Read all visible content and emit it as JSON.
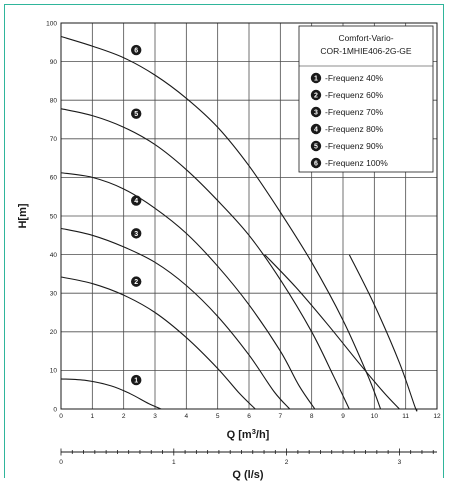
{
  "chart_data": {
    "type": "line",
    "xlabel_base": "Q [m",
    "xlabel_sup": "3",
    "xlabel_tail": "/h]",
    "ylabel": "H[m]",
    "xlim": [
      0,
      12
    ],
    "ylim": [
      0,
      100
    ],
    "x_ticks": [
      "0",
      "1",
      "2",
      "3",
      "4",
      "5",
      "6",
      "7",
      "8",
      "9",
      "10",
      "11",
      "12"
    ],
    "y_ticks": [
      "0",
      "10",
      "20",
      "30",
      "40",
      "50",
      "60",
      "70",
      "80",
      "90",
      "100"
    ],
    "secondary_axis": {
      "label": "Q (l/s)",
      "ticks": [
        {
          "value": 0,
          "label": "0"
        },
        {
          "value": 1,
          "label": "1"
        },
        {
          "value": 2,
          "label": "2"
        },
        {
          "value": 3,
          "label": "3"
        }
      ]
    },
    "legend": {
      "title_line1": "Comfort-Vario-",
      "title_line2": "COR-1MHIE406-2G-GE",
      "entries": [
        {
          "badge": "1",
          "text": "-Frequenz 40%"
        },
        {
          "badge": "2",
          "text": "-Frequenz 60%"
        },
        {
          "badge": "3",
          "text": "-Frequenz 70%"
        },
        {
          "badge": "4",
          "text": "-Frequenz 80%"
        },
        {
          "badge": "5",
          "text": "-Frequenz 90%"
        },
        {
          "badge": "6",
          "text": "-Frequenz 100%"
        }
      ]
    },
    "series": [
      {
        "badge": "1",
        "label_at": [
          2.4,
          7.5
        ],
        "points": [
          [
            0,
            7.8
          ],
          [
            0.8,
            7.4
          ],
          [
            1.6,
            6.0
          ],
          [
            2.2,
            4.0
          ],
          [
            2.8,
            1.4
          ],
          [
            3.2,
            0
          ]
        ]
      },
      {
        "badge": "2",
        "label_at": [
          2.4,
          33
        ],
        "points": [
          [
            0,
            34.2
          ],
          [
            1,
            32.5
          ],
          [
            2,
            29.5
          ],
          [
            3,
            25
          ],
          [
            4,
            18.5
          ],
          [
            5,
            10.5
          ],
          [
            5.7,
            4
          ],
          [
            6.2,
            0
          ]
        ]
      },
      {
        "badge": "3",
        "label_at": [
          2.4,
          45.5
        ],
        "points": [
          [
            0,
            46.8
          ],
          [
            1,
            45
          ],
          [
            2,
            42
          ],
          [
            3,
            38
          ],
          [
            4,
            32
          ],
          [
            5,
            24
          ],
          [
            6,
            14
          ],
          [
            6.8,
            4.5
          ],
          [
            7.3,
            0
          ]
        ]
      },
      {
        "badge": "4",
        "label_at": [
          2.4,
          54
        ],
        "points": [
          [
            0,
            61.2
          ],
          [
            1,
            60
          ],
          [
            2,
            57
          ],
          [
            3,
            52
          ],
          [
            4,
            45.5
          ],
          [
            5,
            37
          ],
          [
            6,
            27
          ],
          [
            7,
            15
          ],
          [
            7.6,
            6
          ],
          [
            8.1,
            0
          ]
        ]
      },
      {
        "badge": "5",
        "label_at": [
          2.4,
          76.5
        ],
        "points": [
          [
            0,
            77.8
          ],
          [
            1,
            76
          ],
          [
            2,
            73
          ],
          [
            3,
            68.5
          ],
          [
            4,
            62
          ],
          [
            5,
            54
          ],
          [
            6,
            45
          ],
          [
            7,
            33.5
          ],
          [
            8,
            20
          ],
          [
            8.7,
            8.5
          ],
          [
            9.2,
            0
          ]
        ]
      },
      {
        "badge": "6",
        "label_at": [
          2.4,
          93
        ],
        "points": [
          [
            0,
            96.5
          ],
          [
            1,
            94
          ],
          [
            2,
            91
          ],
          [
            3,
            86.5
          ],
          [
            4,
            80.5
          ],
          [
            5,
            73
          ],
          [
            6,
            63
          ],
          [
            7,
            51
          ],
          [
            8,
            38
          ],
          [
            9,
            23
          ],
          [
            9.8,
            8.5
          ],
          [
            10.2,
            0
          ]
        ]
      }
    ],
    "extra_series": [
      {
        "badge": "",
        "points": [
          [
            6.5,
            40
          ],
          [
            7.5,
            31.5
          ],
          [
            8.5,
            22
          ],
          [
            9.5,
            12
          ],
          [
            10.3,
            4.3
          ],
          [
            10.8,
            0
          ]
        ]
      },
      {
        "badge": "",
        "points": [
          [
            9.2,
            40
          ],
          [
            10,
            27
          ],
          [
            10.8,
            12
          ],
          [
            11.3,
            0.5
          ],
          [
            11.35,
            0
          ]
        ]
      }
    ],
    "grid": true,
    "colors": {
      "line": "#1a1a1a",
      "grid": "#4d4d4d",
      "border": "#2fb59b"
    }
  }
}
